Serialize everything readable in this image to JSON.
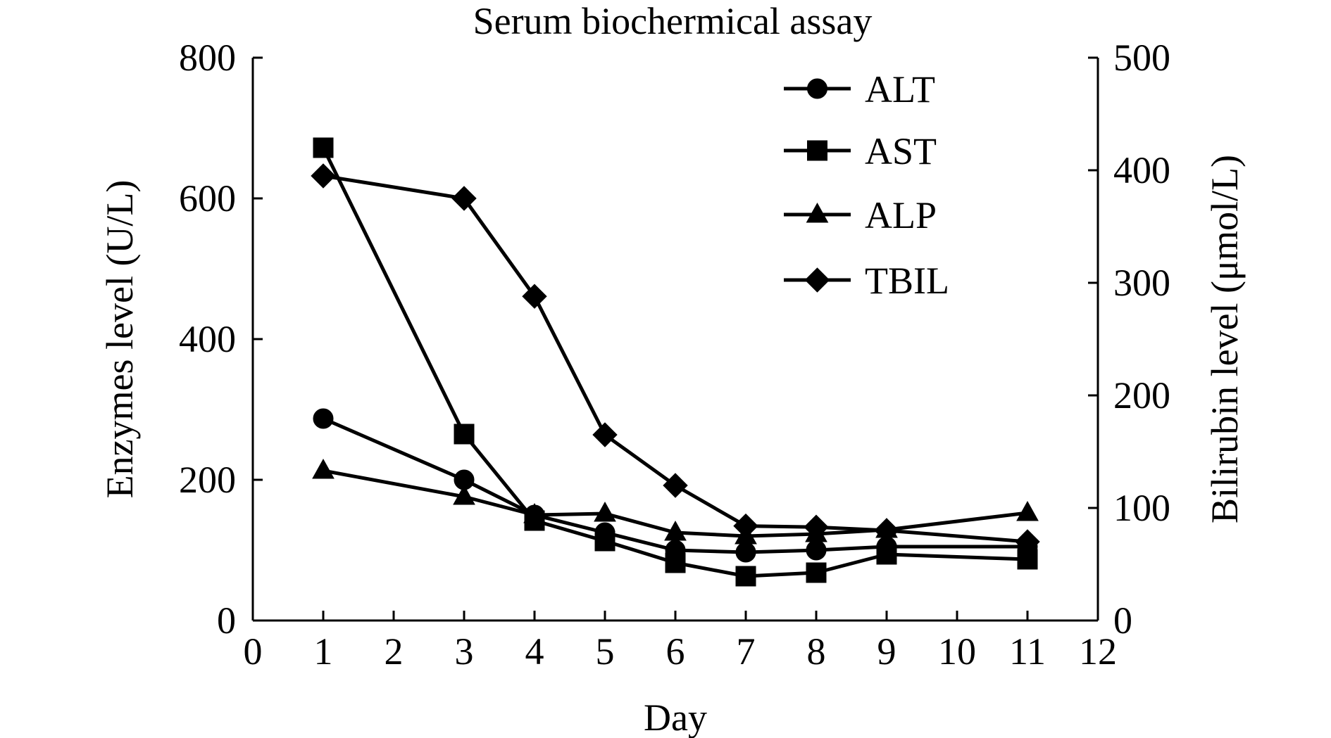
{
  "chart_data": {
    "type": "line",
    "title": "Serum biochermical assay",
    "xlabel": "Day",
    "ylabel": "Enzymes level (U/L)",
    "y2label": "Bilirubin level (μmol/L)",
    "xlim": [
      0,
      12
    ],
    "ylim": [
      0,
      800
    ],
    "y2lim": [
      0,
      500
    ],
    "xticks": [
      0,
      1,
      2,
      3,
      4,
      5,
      6,
      7,
      8,
      9,
      10,
      11,
      12
    ],
    "yticks": [
      0,
      200,
      400,
      600,
      800
    ],
    "y2ticks": [
      0,
      100,
      200,
      300,
      400,
      500
    ],
    "grid": false,
    "legend_position": "top-right",
    "series": [
      {
        "name": "ALT",
        "marker": "circle",
        "axis": "left",
        "x": [
          1,
          3,
          4,
          5,
          6,
          7,
          8,
          9,
          11
        ],
        "values": [
          287,
          200,
          150,
          125,
          100,
          97,
          100,
          105,
          105
        ]
      },
      {
        "name": "AST",
        "marker": "square",
        "axis": "left",
        "x": [
          1,
          3,
          4,
          5,
          6,
          7,
          8,
          9,
          11
        ],
        "values": [
          672,
          265,
          142,
          113,
          82,
          63,
          68,
          94,
          87
        ]
      },
      {
        "name": "ALP",
        "marker": "triangle",
        "axis": "left",
        "x": [
          1,
          3,
          4,
          5,
          6,
          7,
          8,
          9,
          11
        ],
        "values": [
          213,
          176,
          150,
          152,
          125,
          120,
          123,
          129,
          153
        ]
      },
      {
        "name": "TBIL",
        "marker": "diamond",
        "axis": "right",
        "x": [
          1,
          3,
          4,
          5,
          6,
          7,
          8,
          9,
          11
        ],
        "values": [
          395,
          375,
          288,
          165,
          120,
          84,
          83,
          80,
          70
        ]
      }
    ]
  }
}
